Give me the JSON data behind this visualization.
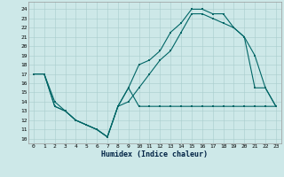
{
  "xlabel": "Humidex (Indice chaleur)",
  "bg_color": "#cde8e8",
  "grid_color": "#a8cccc",
  "line_color": "#006666",
  "xlim": [
    -0.5,
    23.5
  ],
  "ylim": [
    9.5,
    24.8
  ],
  "xticks": [
    0,
    1,
    2,
    3,
    4,
    5,
    6,
    7,
    8,
    9,
    10,
    11,
    12,
    13,
    14,
    15,
    16,
    17,
    18,
    19,
    20,
    21,
    22,
    23
  ],
  "yticks": [
    10,
    11,
    12,
    13,
    14,
    15,
    16,
    17,
    18,
    19,
    20,
    21,
    22,
    23,
    24
  ],
  "line1_x": [
    0,
    1,
    2,
    3,
    4,
    5,
    6,
    7,
    8,
    9,
    10,
    11,
    12,
    13,
    14,
    15,
    16,
    17,
    18,
    19,
    20,
    21,
    22,
    23
  ],
  "line1_y": [
    17.0,
    17.0,
    13.5,
    13.0,
    12.0,
    11.5,
    11.0,
    10.2,
    13.5,
    15.5,
    13.5,
    13.5,
    13.5,
    13.5,
    13.5,
    13.5,
    13.5,
    13.5,
    13.5,
    13.5,
    13.5,
    13.5,
    13.5,
    13.5
  ],
  "line2_x": [
    0,
    1,
    2,
    3,
    4,
    5,
    6,
    7,
    8,
    9,
    10,
    11,
    12,
    13,
    14,
    15,
    16,
    17,
    18,
    19,
    20,
    21,
    22,
    23
  ],
  "line2_y": [
    17.0,
    17.0,
    13.5,
    13.0,
    12.0,
    11.5,
    11.0,
    10.2,
    13.5,
    15.5,
    18.0,
    18.5,
    19.5,
    21.5,
    22.5,
    24.0,
    24.0,
    23.5,
    23.5,
    22.0,
    21.0,
    19.0,
    15.5,
    13.5
  ],
  "line3_x": [
    0,
    1,
    2,
    3,
    4,
    5,
    6,
    7,
    8,
    9,
    10,
    11,
    12,
    13,
    14,
    15,
    16,
    17,
    18,
    19,
    20,
    21,
    22,
    23
  ],
  "line3_y": [
    17.0,
    17.0,
    14.0,
    13.0,
    12.0,
    11.5,
    11.0,
    10.2,
    13.5,
    14.0,
    15.5,
    17.0,
    18.5,
    19.5,
    21.5,
    23.5,
    23.5,
    23.0,
    22.5,
    22.0,
    21.0,
    15.5,
    15.5,
    13.5
  ]
}
